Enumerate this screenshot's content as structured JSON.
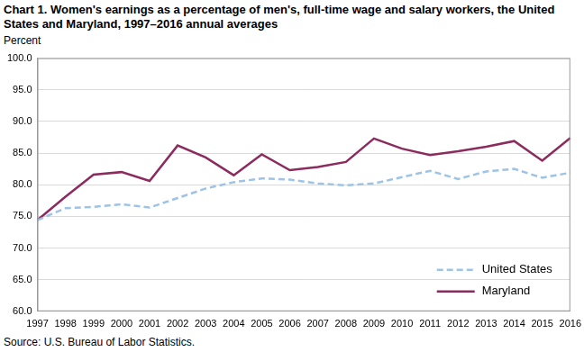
{
  "chart_data": {
    "type": "line",
    "title": "Chart 1. Women's earnings as a percentage of men's, full-time wage and salary workers, the United States and Maryland, 1997–2016 annual averages",
    "y_label": "Percent",
    "source": "Source: U.S. Bureau of Labor Statistics.",
    "categories": [
      "1997",
      "1998",
      "1999",
      "2000",
      "2001",
      "2002",
      "2003",
      "2004",
      "2005",
      "2006",
      "2007",
      "2008",
      "2009",
      "2010",
      "2011",
      "2012",
      "2013",
      "2014",
      "2015",
      "2016"
    ],
    "series": [
      {
        "name": "United States",
        "color": "#9dc3e6",
        "line_style": "dashed",
        "values": [
          74.4,
          76.3,
          76.5,
          76.9,
          76.4,
          77.9,
          79.4,
          80.4,
          81.0,
          80.8,
          80.2,
          79.9,
          80.2,
          81.2,
          82.2,
          80.9,
          82.1,
          82.5,
          81.1,
          81.9
        ]
      },
      {
        "name": "Maryland",
        "color": "#8c2b5e",
        "line_style": "solid",
        "values": [
          74.4,
          78.1,
          81.6,
          82.0,
          80.6,
          86.2,
          84.3,
          81.5,
          84.8,
          82.3,
          82.8,
          83.6,
          87.3,
          85.7,
          84.7,
          85.3,
          86.0,
          86.9,
          83.8,
          87.4
        ]
      }
    ],
    "ylim": [
      60,
      100
    ],
    "yticks": [
      {
        "value": 60,
        "label": "60.0"
      },
      {
        "value": 65,
        "label": "65.0"
      },
      {
        "value": 70,
        "label": "70.0"
      },
      {
        "value": 75,
        "label": "75.0"
      },
      {
        "value": 80,
        "label": "80.0"
      },
      {
        "value": 85,
        "label": "85.0"
      },
      {
        "value": 90,
        "label": "90.0"
      },
      {
        "value": 95,
        "label": "95.0"
      },
      {
        "value": 100,
        "label": "100.0"
      }
    ],
    "grid": true,
    "legend": "lower right"
  }
}
